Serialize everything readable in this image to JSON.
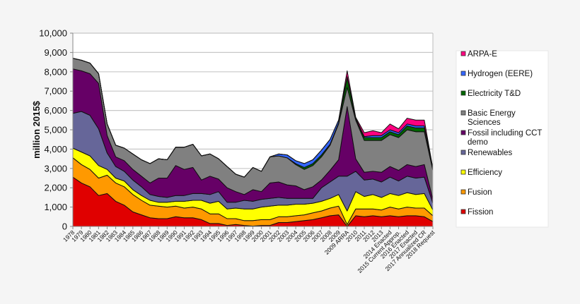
{
  "chart_data": {
    "type": "area",
    "stacked": true,
    "title": "",
    "xlabel": "",
    "ylabel": "million 2015$",
    "ylim": [
      0,
      10000
    ],
    "yticks": [
      0,
      1000,
      2000,
      3000,
      4000,
      5000,
      6000,
      7000,
      8000,
      9000,
      10000
    ],
    "ytick_labels": [
      "0",
      "1,000",
      "2,000",
      "3,000",
      "4,000",
      "5,000",
      "6,000",
      "7,000",
      "8,000",
      "9,000",
      "10,000"
    ],
    "grid": true,
    "legend_position": "right",
    "categories": [
      "1978",
      "1979",
      "1980",
      "1981",
      "1982",
      "1983",
      "1984",
      "1985",
      "1986",
      "1987",
      "1988",
      "1989",
      "1990",
      "1991",
      "1992",
      "1993",
      "1994",
      "1995",
      "1996",
      "1997",
      "1998",
      "1999",
      "2000",
      "2001",
      "2002",
      "2003",
      "2004",
      "2005",
      "2006",
      "2007",
      "2008",
      "2009",
      "2009 ARRA",
      "2010",
      "2011",
      "2012",
      "2013",
      "2014 Enacted",
      "2015 Current Approp.",
      "2016 Enacted",
      "2017 Enacted",
      "2017 Annualized CR",
      "2018 Request"
    ],
    "series": [
      {
        "name": "Fission",
        "color": "#e00000",
        "values": [
          2550,
          2250,
          2050,
          1600,
          1700,
          1300,
          1100,
          750,
          600,
          450,
          400,
          400,
          500,
          450,
          450,
          350,
          150,
          150,
          50,
          100,
          50,
          20,
          50,
          50,
          200,
          200,
          250,
          300,
          350,
          450,
          550,
          600,
          0,
          550,
          500,
          550,
          500,
          550,
          500,
          550,
          550,
          500,
          250
        ]
      },
      {
        "name": "Fusion",
        "color": "#ff9900",
        "values": [
          1000,
          950,
          900,
          900,
          950,
          950,
          950,
          900,
          750,
          650,
          650,
          600,
          550,
          500,
          550,
          550,
          500,
          500,
          350,
          300,
          250,
          280,
          300,
          300,
          300,
          300,
          300,
          300,
          350,
          350,
          400,
          450,
          100,
          350,
          400,
          350,
          350,
          450,
          400,
          450,
          400,
          450,
          300
        ]
      },
      {
        "name": "Efficiency",
        "color": "#ffff00",
        "values": [
          500,
          650,
          700,
          650,
          300,
          250,
          300,
          250,
          250,
          250,
          200,
          250,
          250,
          350,
          350,
          450,
          550,
          650,
          500,
          550,
          600,
          600,
          650,
          700,
          600,
          600,
          600,
          550,
          500,
          500,
          500,
          600,
          700,
          900,
          650,
          750,
          650,
          700,
          700,
          750,
          700,
          750,
          300
        ]
      },
      {
        "name": "Renewables",
        "color": "#666699",
        "values": [
          1800,
          2100,
          2100,
          1900,
          850,
          600,
          500,
          500,
          450,
          300,
          300,
          250,
          300,
          300,
          350,
          350,
          450,
          500,
          350,
          300,
          450,
          400,
          400,
          400,
          400,
          350,
          300,
          300,
          250,
          700,
          850,
          950,
          1800,
          1050,
          850,
          800,
          800,
          850,
          750,
          850,
          850,
          850,
          350
        ]
      },
      {
        "name": "Fossil including CCT demo",
        "color": "#660066",
        "values": [
          2300,
          2100,
          2150,
          2350,
          900,
          500,
          550,
          550,
          550,
          600,
          950,
          1000,
          1550,
          1350,
          1350,
          700,
          950,
          650,
          750,
          550,
          300,
          600,
          400,
          800,
          800,
          700,
          650,
          450,
          600,
          400,
          600,
          850,
          3600,
          650,
          400,
          400,
          500,
          550,
          550,
          600,
          600,
          650,
          200
        ]
      },
      {
        "name": "Basic Energy Sciences",
        "color": "#808080",
        "values": [
          550,
          550,
          550,
          500,
          600,
          600,
          650,
          800,
          850,
          1000,
          1000,
          950,
          950,
          1150,
          1200,
          1250,
          1150,
          1050,
          1100,
          900,
          900,
          1150,
          1050,
          1350,
          1350,
          1400,
          1100,
          1050,
          1100,
          1200,
          1300,
          1850,
          1000,
          2000,
          1650,
          1600,
          1650,
          1650,
          1700,
          1800,
          1800,
          1700,
          1500
        ]
      },
      {
        "name": "Electricity T&D",
        "color": "#006600",
        "values": [
          0,
          0,
          0,
          0,
          0,
          0,
          0,
          0,
          0,
          0,
          0,
          0,
          0,
          0,
          0,
          0,
          0,
          0,
          0,
          0,
          0,
          0,
          0,
          0,
          0,
          0,
          50,
          100,
          100,
          100,
          50,
          50,
          500,
          50,
          150,
          150,
          150,
          150,
          150,
          200,
          200,
          200,
          100
        ]
      },
      {
        "name": "Hydrogen (EERE)",
        "color": "#3366ff",
        "values": [
          0,
          0,
          0,
          0,
          0,
          0,
          0,
          0,
          0,
          0,
          0,
          0,
          0,
          0,
          0,
          0,
          0,
          0,
          0,
          0,
          0,
          0,
          0,
          0,
          100,
          150,
          150,
          200,
          200,
          250,
          250,
          150,
          50,
          50,
          50,
          100,
          100,
          100,
          100,
          100,
          100,
          100,
          0
        ]
      },
      {
        "name": "ARPA-E",
        "color": "#ff0080",
        "values": [
          0,
          0,
          0,
          0,
          0,
          0,
          0,
          0,
          0,
          0,
          0,
          0,
          0,
          0,
          0,
          0,
          0,
          0,
          0,
          0,
          0,
          0,
          0,
          0,
          0,
          0,
          0,
          0,
          0,
          0,
          0,
          0,
          300,
          50,
          200,
          250,
          150,
          300,
          200,
          300,
          300,
          300,
          0
        ]
      }
    ],
    "legend_order": [
      "ARPA-E",
      "Hydrogen (EERE)",
      "Electricity T&D",
      "Basic Energy Sciences",
      "Fossil including CCT demo",
      "Renewables",
      "Efficiency",
      "Fusion",
      "Fission"
    ]
  }
}
